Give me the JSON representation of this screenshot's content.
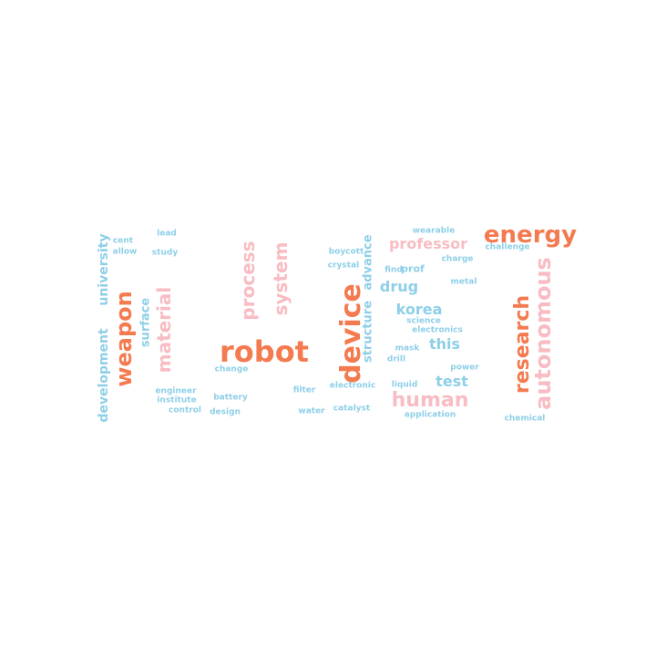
{
  "palette": {
    "orange": "#f47a4f",
    "pink": "#f8bcc2",
    "blue": "#8ecfe8"
  },
  "words": [
    {
      "text": "robot",
      "color": "orange"
    },
    {
      "text": "device",
      "color": "orange"
    },
    {
      "text": "energy",
      "color": "orange"
    },
    {
      "text": "weapon",
      "color": "orange"
    },
    {
      "text": "research",
      "color": "orange"
    },
    {
      "text": "autonomous",
      "color": "pink"
    },
    {
      "text": "human",
      "color": "pink"
    },
    {
      "text": "material",
      "color": "pink"
    },
    {
      "text": "process",
      "color": "pink"
    },
    {
      "text": "system",
      "color": "pink"
    },
    {
      "text": "professor",
      "color": "pink"
    },
    {
      "text": "development",
      "color": "blue"
    },
    {
      "text": "university",
      "color": "blue"
    },
    {
      "text": "surface",
      "color": "blue"
    },
    {
      "text": "structure",
      "color": "blue"
    },
    {
      "text": "advance",
      "color": "blue"
    },
    {
      "text": "korea",
      "color": "blue"
    },
    {
      "text": "drug",
      "color": "blue"
    },
    {
      "text": "this",
      "color": "blue"
    },
    {
      "text": "test",
      "color": "blue"
    },
    {
      "text": "prof",
      "color": "blue"
    },
    {
      "text": "find",
      "color": "blue"
    },
    {
      "text": "science",
      "color": "blue"
    },
    {
      "text": "electronics",
      "color": "blue"
    },
    {
      "text": "lead",
      "color": "blue"
    },
    {
      "text": "cent",
      "color": "blue"
    },
    {
      "text": "allow",
      "color": "blue"
    },
    {
      "text": "study",
      "color": "blue"
    },
    {
      "text": "wearable",
      "color": "blue"
    },
    {
      "text": "challenge",
      "color": "blue"
    },
    {
      "text": "boycott",
      "color": "blue"
    },
    {
      "text": "charge",
      "color": "blue"
    },
    {
      "text": "crystal",
      "color": "blue"
    },
    {
      "text": "metal",
      "color": "blue"
    },
    {
      "text": "mask",
      "color": "blue"
    },
    {
      "text": "drill",
      "color": "blue"
    },
    {
      "text": "power",
      "color": "blue"
    },
    {
      "text": "change",
      "color": "blue"
    },
    {
      "text": "filter",
      "color": "blue"
    },
    {
      "text": "engineer",
      "color": "blue"
    },
    {
      "text": "institute",
      "color": "blue"
    },
    {
      "text": "battery",
      "color": "blue"
    },
    {
      "text": "electronic",
      "color": "blue"
    },
    {
      "text": "liquid",
      "color": "blue"
    },
    {
      "text": "control",
      "color": "blue"
    },
    {
      "text": "design",
      "color": "blue"
    },
    {
      "text": "water",
      "color": "blue"
    },
    {
      "text": "catalyst",
      "color": "blue"
    },
    {
      "text": "application",
      "color": "blue"
    },
    {
      "text": "chemical",
      "color": "blue"
    }
  ]
}
